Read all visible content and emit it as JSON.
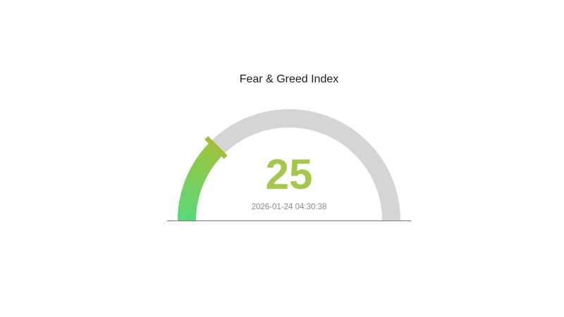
{
  "page": {
    "background": "#ffffff"
  },
  "chart_data": {
    "type": "gauge",
    "title": "Fear & Greed Index",
    "value": 25,
    "min": 0,
    "max": 100,
    "timestamp": "2026-01-24 04:30:38",
    "start_angle_deg": 180,
    "end_angle_deg": 0,
    "legend": false,
    "grid": false,
    "colors": {
      "track": "#d5d5d5",
      "progress_start": "#58d878",
      "progress_end": "#9dc43f",
      "marker": "#a0be3c",
      "value_text": "#a3c84b",
      "timestamp_text": "#8a8a8a",
      "title_text": "#1f1f1f",
      "baseline": "#777777",
      "background": "#ffffff"
    }
  }
}
